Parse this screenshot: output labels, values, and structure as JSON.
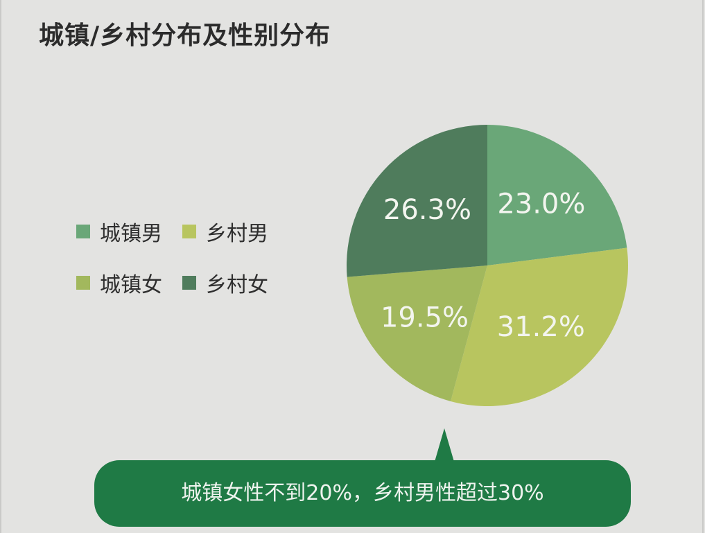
{
  "title": "城镇/乡村分布及性别分布",
  "legend": [
    {
      "label": "城镇男",
      "color": "#6aa778"
    },
    {
      "label": "乡村男",
      "color": "#b8c55f"
    },
    {
      "label": "城镇女",
      "color": "#a2b85d"
    },
    {
      "label": "乡村女",
      "color": "#4f7c5c"
    }
  ],
  "chart_data": {
    "type": "pie",
    "title": "城镇/乡村分布及性别分布",
    "slices": [
      {
        "label": "城镇男",
        "value": 23.0,
        "value_label": "23.0%",
        "color": "#6aa778"
      },
      {
        "label": "乡村男",
        "value": 31.2,
        "value_label": "31.2%",
        "color": "#b8c55f"
      },
      {
        "label": "城镇女",
        "value": 19.5,
        "value_label": "19.5%",
        "color": "#a2b85d"
      },
      {
        "label": "乡村女",
        "value": 26.3,
        "value_label": "26.3%",
        "color": "#4f7c5c"
      }
    ],
    "start": "12 o'clock",
    "direction": "clockwise",
    "legend_position": "left"
  },
  "callout": {
    "text": "城镇女性不到20%，乡村男性超过30%",
    "color": "#1f7a45"
  }
}
